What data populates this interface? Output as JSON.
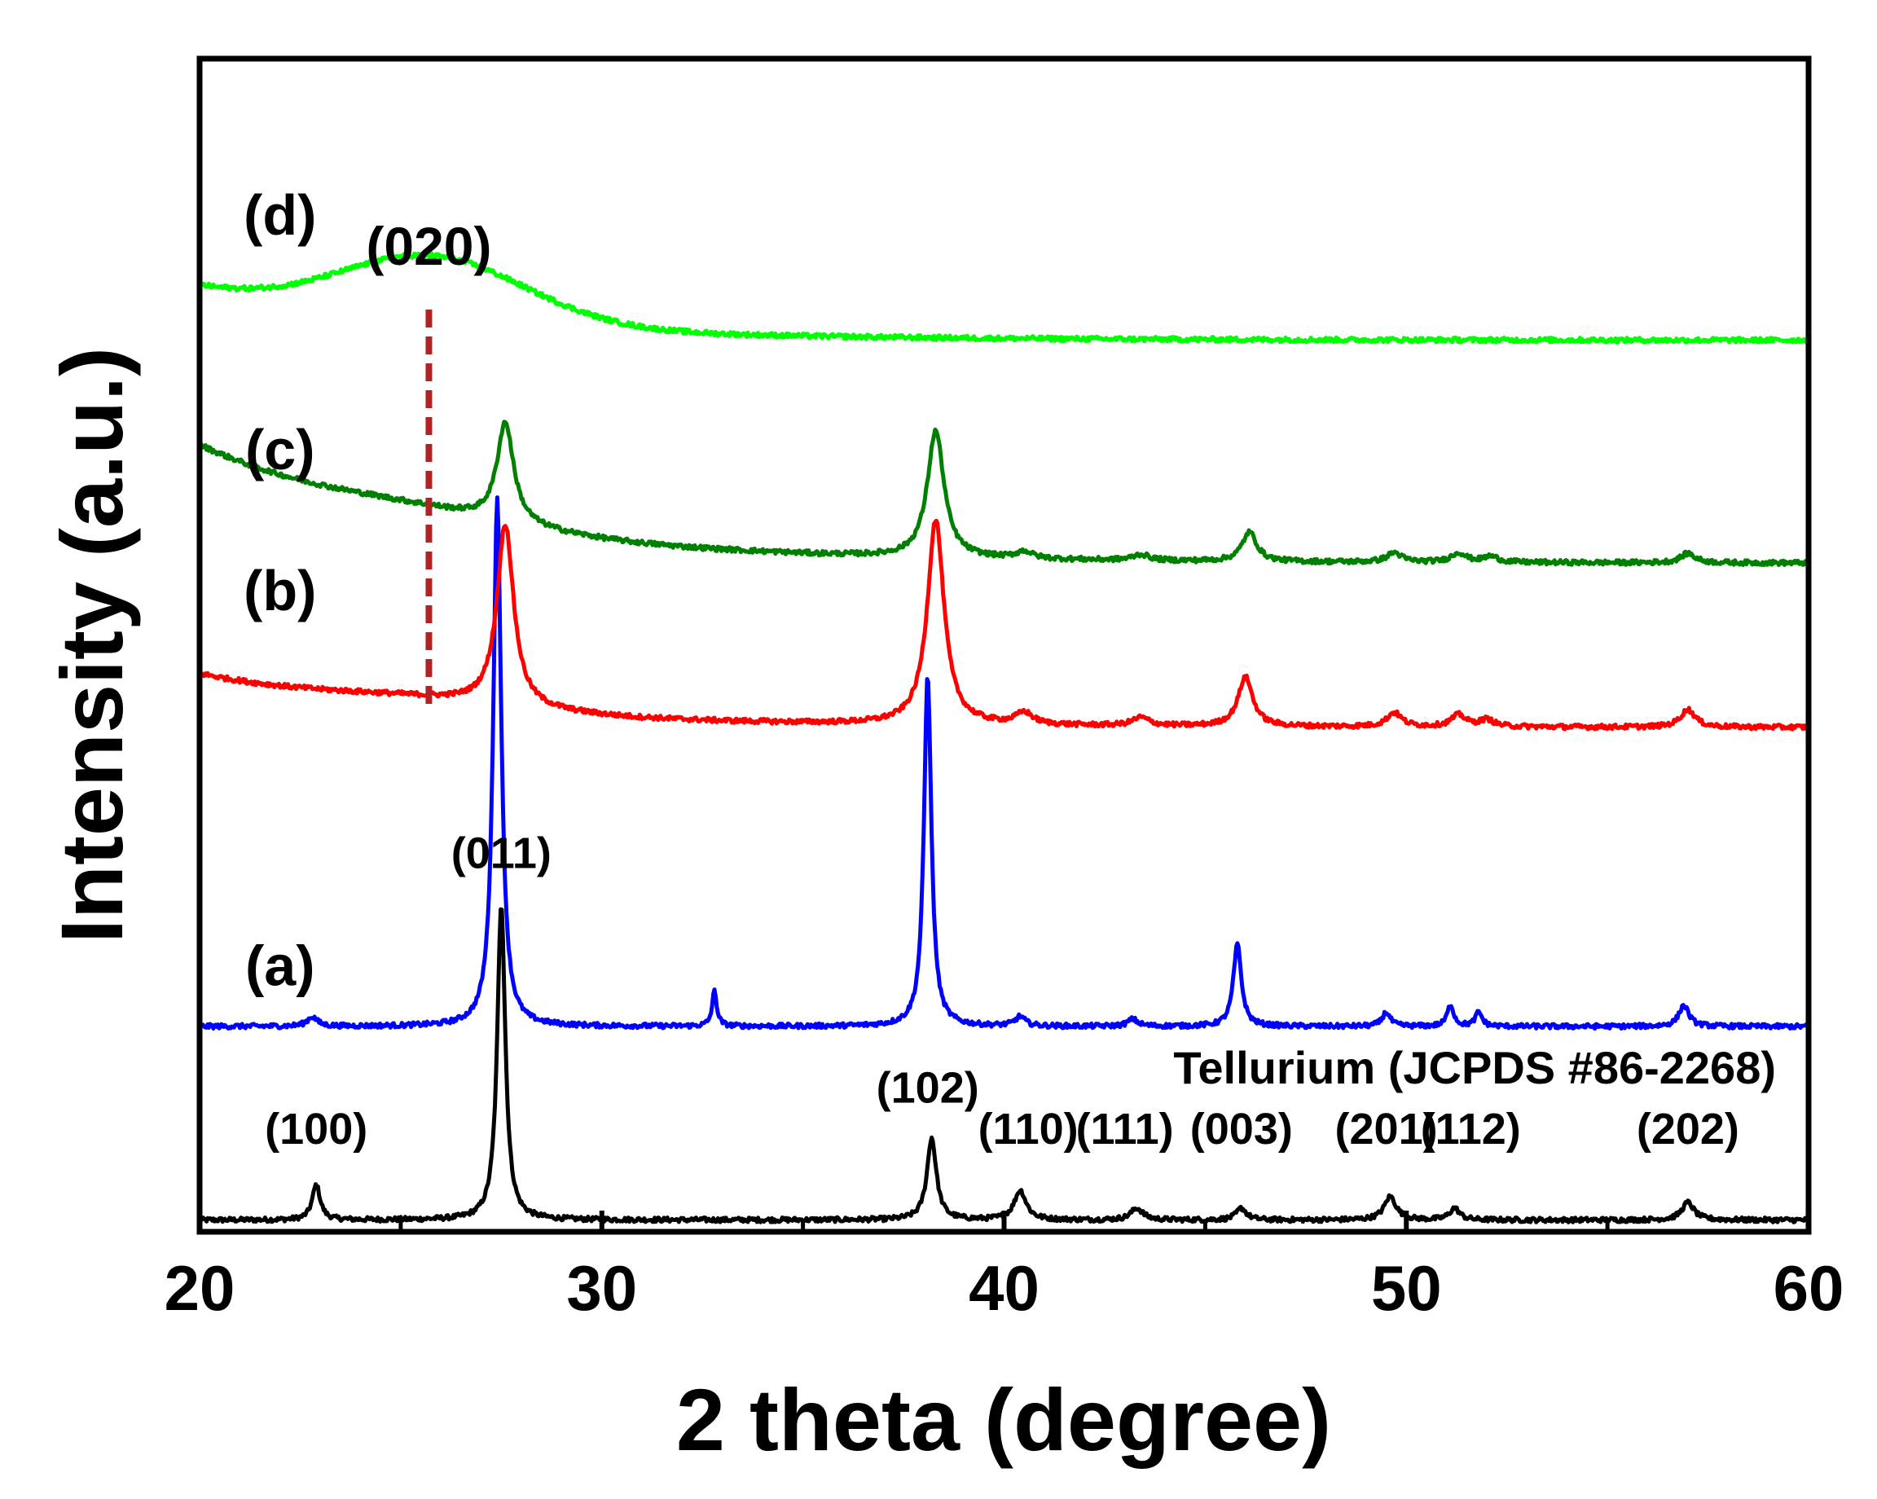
{
  "chart_data": {
    "type": "line",
    "title": "",
    "xlabel": "2 theta (degree)",
    "ylabel": "Intensity (a.u.)",
    "xlim": [
      20,
      60
    ],
    "x_ticks": [
      20,
      30,
      40,
      50,
      60
    ],
    "x_minor_step": 5,
    "y_ticks": [],
    "grid": false,
    "reference_label": "Tellurium (JCPDS #86-2268)",
    "series": [
      {
        "key": "ref",
        "name": "",
        "color": "#000000",
        "baseline": 0.01,
        "slope": 0.0,
        "hump": null,
        "peaks": [
          [
            22.9,
            0.03,
            0.12
          ],
          [
            27.5,
            0.27,
            0.12
          ],
          [
            38.2,
            0.07,
            0.14
          ],
          [
            40.4,
            0.025,
            0.18
          ],
          [
            43.3,
            0.01,
            0.18
          ],
          [
            45.9,
            0.01,
            0.15
          ],
          [
            49.6,
            0.02,
            0.18
          ],
          [
            51.2,
            0.01,
            0.15
          ],
          [
            57.0,
            0.015,
            0.18
          ]
        ]
      },
      {
        "key": "a",
        "name": "(a)",
        "color": "#0000ff",
        "baseline": 0.175,
        "slope": 0.0,
        "hump": null,
        "peaks": [
          [
            22.8,
            0.008,
            0.15
          ],
          [
            27.4,
            0.45,
            0.12
          ],
          [
            32.8,
            0.03,
            0.07
          ],
          [
            38.1,
            0.3,
            0.11
          ],
          [
            40.4,
            0.008,
            0.15
          ],
          [
            43.2,
            0.006,
            0.15
          ],
          [
            45.8,
            0.07,
            0.12
          ],
          [
            49.5,
            0.012,
            0.12
          ],
          [
            51.1,
            0.018,
            0.1
          ],
          [
            51.8,
            0.012,
            0.1
          ],
          [
            56.9,
            0.018,
            0.15
          ]
        ]
      },
      {
        "key": "b",
        "name": "(b)",
        "color": "#ff0000",
        "baseline": 0.43,
        "slope": 0.045,
        "hump": [
          25.5,
          0.008,
          2.5
        ],
        "peaks": [
          [
            27.6,
            0.155,
            0.25
          ],
          [
            38.3,
            0.175,
            0.25
          ],
          [
            40.5,
            0.01,
            0.25
          ],
          [
            43.4,
            0.007,
            0.25
          ],
          [
            46.0,
            0.042,
            0.22
          ],
          [
            49.7,
            0.012,
            0.22
          ],
          [
            51.3,
            0.01,
            0.22
          ],
          [
            52.0,
            0.006,
            0.22
          ],
          [
            57.0,
            0.015,
            0.22
          ]
        ]
      },
      {
        "key": "c",
        "name": "(c)",
        "color": "#008000",
        "baseline": 0.57,
        "slope": 0.1,
        "hump": [
          25.5,
          0.01,
          2.5
        ],
        "peaks": [
          [
            27.6,
            0.085,
            0.25
          ],
          [
            38.3,
            0.108,
            0.25
          ],
          [
            40.5,
            0.006,
            0.25
          ],
          [
            43.4,
            0.005,
            0.25
          ],
          [
            46.1,
            0.025,
            0.22
          ],
          [
            49.7,
            0.008,
            0.22
          ],
          [
            51.3,
            0.008,
            0.22
          ],
          [
            52.1,
            0.005,
            0.22
          ],
          [
            57.0,
            0.008,
            0.22
          ]
        ]
      },
      {
        "key": "d",
        "name": "(d)",
        "color": "#00ff00",
        "baseline": 0.76,
        "slope": 0.045,
        "hump": [
          25.8,
          0.055,
          2.3
        ],
        "peaks": []
      }
    ],
    "peak_labels": [
      {
        "text": "(100)",
        "x": 22.9,
        "y": 0.075
      },
      {
        "text": "(011)",
        "x": 27.5,
        "y": 0.31
      },
      {
        "text": "(102)",
        "x": 38.1,
        "y": 0.11
      },
      {
        "text": "(110)",
        "x": 40.6,
        "y": 0.075
      },
      {
        "text": "(111)",
        "x": 43.0,
        "y": 0.075
      },
      {
        "text": "(003)",
        "x": 45.9,
        "y": 0.075
      },
      {
        "text": "(201)",
        "x": 49.5,
        "y": 0.075
      },
      {
        "text": "(112)",
        "x": 51.6,
        "y": 0.075
      },
      {
        "text": "(202)",
        "x": 57.0,
        "y": 0.075
      }
    ],
    "series_labels": [
      {
        "text": "(a)",
        "x": 22.0,
        "y": 0.21
      },
      {
        "text": "(b)",
        "x": 22.0,
        "y": 0.53
      },
      {
        "text": "(c)",
        "x": 22.0,
        "y": 0.65
      },
      {
        "text": "(d)",
        "x": 22.0,
        "y": 0.85
      }
    ],
    "annotation": {
      "text": "(020)",
      "color": "#b22222",
      "x": 25.7,
      "y_from": 0.45,
      "y_to": 0.793
    }
  }
}
